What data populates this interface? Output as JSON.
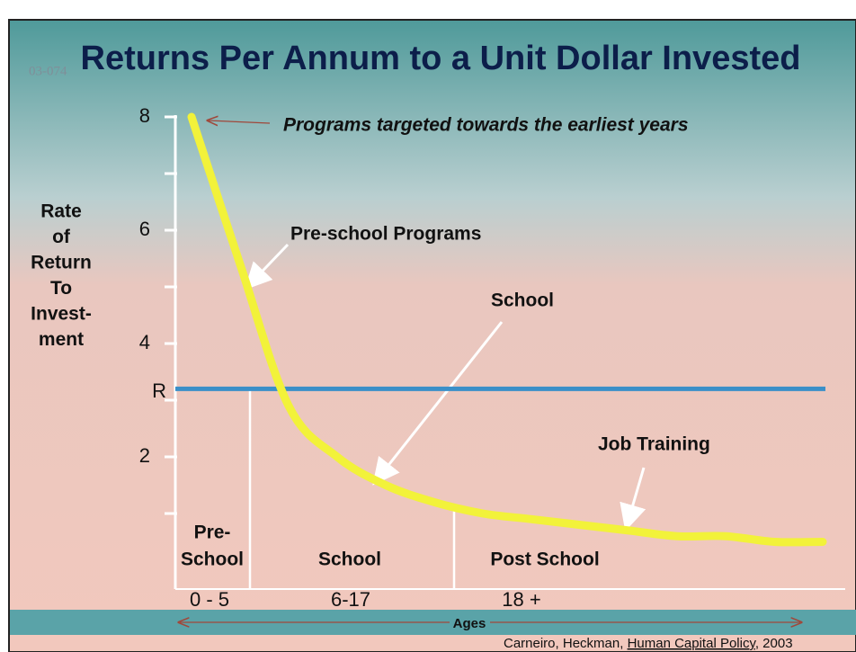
{
  "chart_data": {
    "type": "line",
    "title": "Returns Per Annum to a Unit Dollar Invested",
    "stamp": "03-074",
    "y_label_lines": [
      "Rate",
      "of",
      "Return",
      "To",
      "Invest-",
      "ment"
    ],
    "ylim": [
      0,
      8
    ],
    "yticks": [
      2,
      4,
      6,
      8
    ],
    "yminor": [
      1,
      3,
      5,
      7
    ],
    "r_line": {
      "label": "R",
      "value": 3.2,
      "color": "#3a8fc8"
    },
    "curve": {
      "color": "#f2f23a",
      "values": [
        8.0,
        5.4,
        2.9,
        2.0,
        1.5,
        1.2,
        1.0,
        0.9,
        0.8,
        0.7,
        0.6,
        0.6,
        0.5,
        0.5
      ]
    },
    "annotations": {
      "earliest": "Programs targeted towards the earliest years",
      "preschool": "Pre-school Programs",
      "school": "School",
      "job": "Job Training"
    },
    "regions": [
      {
        "lines": [
          "Pre-",
          "School"
        ],
        "ages": "0 - 5"
      },
      {
        "lines": [
          "School"
        ],
        "ages": "6-17"
      },
      {
        "lines": [
          "Post School"
        ],
        "ages": "18 +"
      }
    ],
    "x_label": "Ages",
    "citation": {
      "authors": "Carneiro, Heckman, ",
      "work": "Human Capital Policy",
      "year": ", 2003"
    }
  }
}
